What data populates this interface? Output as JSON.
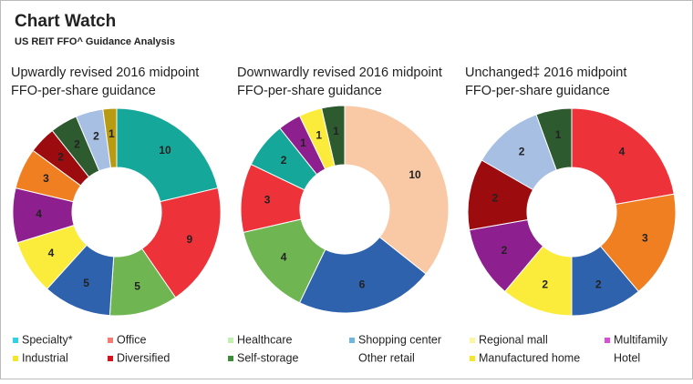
{
  "title": "Chart Watch",
  "subtitle": "US REIT FFO^ Guidance Analysis",
  "chart_data": [
    {
      "type": "pie",
      "title": [
        "Upwardly revised 2016 midpoint",
        "FFO-per-share guidance"
      ],
      "values": [
        10,
        9,
        5,
        5,
        4,
        4,
        3,
        2,
        2,
        2,
        1
      ],
      "colors": [
        "#15a89a",
        "#ee3239",
        "#6fb552",
        "#2e62ad",
        "#fbec3b",
        "#8e1f8e",
        "#f07f22",
        "#9c0c0f",
        "#2e5a2f",
        "#a6bfe3",
        "#b89b12"
      ]
    },
    {
      "type": "pie",
      "title": [
        "Downwardly revised 2016 midpoint",
        "FFO-per-share guidance"
      ],
      "values": [
        10,
        6,
        4,
        3,
        2,
        1,
        1,
        1
      ],
      "colors": [
        "#f9c9a6",
        "#2e62ad",
        "#6fb552",
        "#ee3239",
        "#15a89a",
        "#8e1f8e",
        "#fbec3b",
        "#2e5a2f"
      ]
    },
    {
      "type": "pie",
      "title": [
        "Unchanged‡ 2016 midpoint",
        "FFO-per-share guidance"
      ],
      "values": [
        4,
        3,
        2,
        2,
        2,
        2,
        2,
        1
      ],
      "colors": [
        "#ee3239",
        "#f07f22",
        "#2e62ad",
        "#fbec3b",
        "#8e1f8e",
        "#9c0c0f",
        "#a6bfe3",
        "#2e5a2f"
      ]
    }
  ],
  "legend": [
    {
      "name": "Specialty*",
      "color": "#33d1e6"
    },
    {
      "name": "Office",
      "color": "#f47c74"
    },
    {
      "name": "Healthcare",
      "color": "#bff0b0"
    },
    {
      "name": "Shopping center",
      "color": "#6db7e0"
    },
    {
      "name": "Regional mall",
      "color": "#fdf6a0"
    },
    {
      "name": "Multifamily",
      "color": "#d94fd9"
    },
    {
      "name": "Industrial",
      "color": "#f5e62c"
    },
    {
      "name": "Diversified",
      "color": "#d6121a"
    },
    {
      "name": "Self-storage",
      "color": "#3c8c3a"
    },
    {
      "name": "Other retail"
    },
    {
      "name": "Manufactured home",
      "color": "#f5e62c"
    },
    {
      "name": "Hotel"
    }
  ]
}
